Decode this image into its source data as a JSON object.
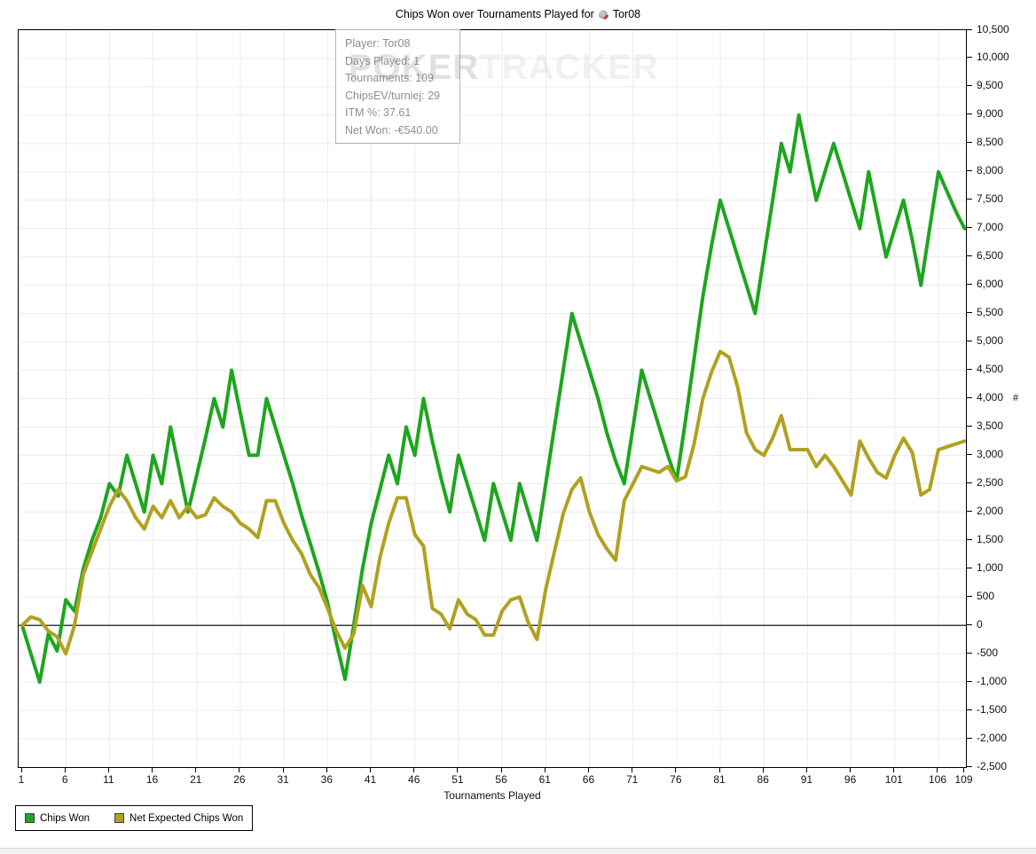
{
  "tooltip": {
    "lines": [
      "Player: Tor08",
      "Days Played: 1",
      "Tournaments: 109",
      "ChipsEV/turniej: 29",
      "ITM %: 37.61",
      "Net Won: -€540.00"
    ]
  },
  "watermark": {
    "part1": "POKER",
    "part2": "TRACKER"
  },
  "chart_data": {
    "type": "line",
    "title_prefix": "Chips Won over Tournaments Played for",
    "player": "Tor08",
    "xlabel": "Tournaments Played",
    "ylabel": "#",
    "x_range": [
      1,
      109
    ],
    "ylim": [
      -2500,
      10500
    ],
    "y_tick_step": 500,
    "grid": true,
    "zero_line": true,
    "legend_position": "bottom-left",
    "x_ticks": [
      1,
      6,
      11,
      16,
      21,
      26,
      31,
      36,
      41,
      46,
      51,
      56,
      61,
      66,
      71,
      76,
      81,
      86,
      91,
      96,
      101,
      106,
      109
    ],
    "y_tick_labels": [
      "10,500",
      "10,000",
      "9,500",
      "9,000",
      "8,500",
      "8,000",
      "7,500",
      "7,000",
      "6,500",
      "6,000",
      "5,500",
      "5,000",
      "4,500",
      "4,000",
      "3,500",
      "3,000",
      "2,500",
      "2,000",
      "1,500",
      "1,000",
      "500",
      "0",
      "-500",
      "-1,000",
      "-1,500",
      "-2,000",
      "-2,500"
    ],
    "series": [
      {
        "name": "Chips Won",
        "color": "#1fa51f",
        "values": [
          0,
          -500,
          -1000,
          -150,
          -450,
          450,
          250,
          1000,
          1500,
          1900,
          2500,
          2280,
          3000,
          2500,
          2000,
          3000,
          2500,
          3500,
          2750,
          2000,
          2650,
          3300,
          4000,
          3500,
          4500,
          3750,
          3000,
          3000,
          4000,
          3500,
          3000,
          2500,
          1950,
          1450,
          950,
          400,
          -300,
          -950,
          0,
          1000,
          1800,
          2400,
          3000,
          2500,
          3500,
          3000,
          4000,
          3250,
          2600,
          2000,
          3000,
          2500,
          2000,
          1500,
          2500,
          2000,
          1500,
          2500,
          2000,
          1500,
          2500,
          3500,
          4500,
          5500,
          5000,
          4500,
          4000,
          3400,
          2900,
          2500,
          3500,
          4500,
          4000,
          3500,
          3000,
          2550,
          3600,
          4700,
          5800,
          6700,
          7500,
          7000,
          6500,
          6000,
          5500,
          6500,
          7500,
          8500,
          8000,
          9000,
          8250,
          7500,
          8000,
          8500,
          8000,
          7500,
          7000,
          8000,
          7250,
          6500,
          7000,
          7500,
          6800,
          6000,
          7000,
          8000,
          7650,
          7300,
          7000
        ]
      },
      {
        "name": "Net Expected Chips Won",
        "color": "#b1a120",
        "values": [
          0,
          150,
          100,
          -100,
          -200,
          -500,
          0,
          900,
          1300,
          1700,
          2100,
          2400,
          2200,
          1900,
          1700,
          2100,
          1900,
          2200,
          1900,
          2100,
          1900,
          1950,
          2250,
          2100,
          2000,
          1800,
          1700,
          1550,
          2200,
          2200,
          1800,
          1500,
          1270,
          900,
          670,
          300,
          -100,
          -400,
          -150,
          700,
          330,
          1200,
          1800,
          2250,
          2250,
          1600,
          1400,
          300,
          200,
          -60,
          450,
          200,
          100,
          -170,
          -170,
          250,
          450,
          500,
          50,
          -245,
          640,
          1300,
          1970,
          2400,
          2600,
          2000,
          1600,
          1350,
          1150,
          2200,
          2500,
          2800,
          2750,
          2700,
          2800,
          2550,
          2620,
          3200,
          4000,
          4470,
          4830,
          4730,
          4200,
          3400,
          3100,
          3000,
          3300,
          3700,
          3100,
          3100,
          3100,
          2800,
          3000,
          2800,
          2550,
          2300,
          3250,
          2950,
          2700,
          2600,
          3000,
          3300,
          3050,
          2300,
          2400,
          3100,
          3150,
          3200,
          3250
        ]
      }
    ]
  }
}
